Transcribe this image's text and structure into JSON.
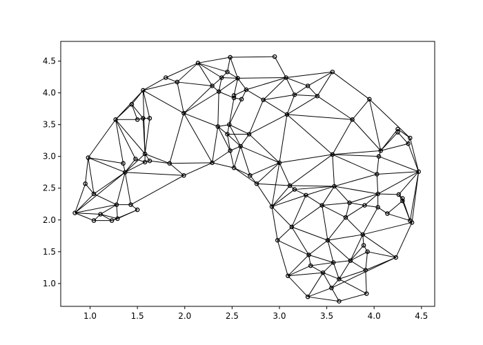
{
  "chart_data": {
    "type": "triangulation",
    "title": "",
    "xlabel": "",
    "ylabel": "",
    "xlim": [
      0.69,
      4.64
    ],
    "ylim": [
      0.64,
      4.81
    ],
    "x_ticks": [
      1.0,
      1.5,
      2.0,
      2.5,
      3.0,
      3.5,
      4.0,
      4.5
    ],
    "x_tick_labels": [
      "1.0",
      "1.5",
      "2.0",
      "2.5",
      "3.0",
      "3.5",
      "4.0",
      "4.5"
    ],
    "y_ticks": [
      1.0,
      1.5,
      2.0,
      2.5,
      3.0,
      3.5,
      4.0,
      4.5
    ],
    "y_tick_labels": [
      "1.0",
      "1.5",
      "2.0",
      "2.5",
      "3.0",
      "3.5",
      "4.0",
      "4.5"
    ],
    "grid": false,
    "line_color": "#000000",
    "marker": "open-circle",
    "points": [
      [
        0.84,
        2.11
      ],
      [
        1.04,
        1.99
      ],
      [
        1.23,
        1.99
      ],
      [
        1.29,
        2.02
      ],
      [
        1.5,
        2.16
      ],
      [
        1.43,
        2.24
      ],
      [
        1.28,
        2.24
      ],
      [
        1.11,
        2.09
      ],
      [
        1.04,
        2.41
      ],
      [
        0.95,
        2.57
      ],
      [
        1.37,
        2.75
      ],
      [
        1.35,
        2.89
      ],
      [
        0.98,
        2.98
      ],
      [
        1.27,
        3.58
      ],
      [
        1.48,
        2.96
      ],
      [
        1.58,
        2.91
      ],
      [
        1.58,
        3.04
      ],
      [
        1.63,
        2.93
      ],
      [
        1.84,
        2.89
      ],
      [
        1.99,
        2.7
      ],
      [
        1.44,
        3.82
      ],
      [
        1.56,
        4.04
      ],
      [
        1.8,
        4.24
      ],
      [
        1.92,
        4.17
      ],
      [
        1.99,
        3.68
      ],
      [
        1.5,
        3.58
      ],
      [
        1.56,
        3.6
      ],
      [
        1.63,
        3.6
      ],
      [
        2.14,
        4.47
      ],
      [
        2.29,
        4.11
      ],
      [
        2.36,
        4.02
      ],
      [
        2.39,
        4.24
      ],
      [
        2.45,
        4.33
      ],
      [
        2.48,
        4.56
      ],
      [
        2.56,
        4.23
      ],
      [
        2.52,
        3.96
      ],
      [
        2.52,
        3.92
      ],
      [
        2.6,
        3.9
      ],
      [
        2.65,
        4.05
      ],
      [
        2.83,
        3.89
      ],
      [
        2.95,
        4.57
      ],
      [
        3.07,
        4.24
      ],
      [
        3.16,
        3.97
      ],
      [
        3.3,
        4.11
      ],
      [
        3.4,
        3.95
      ],
      [
        3.56,
        4.33
      ],
      [
        3.95,
        3.9
      ],
      [
        3.77,
        3.58
      ],
      [
        3.08,
        3.66
      ],
      [
        2.47,
        3.5
      ],
      [
        2.35,
        3.47
      ],
      [
        2.45,
        3.35
      ],
      [
        2.68,
        3.35
      ],
      [
        2.59,
        3.16
      ],
      [
        2.48,
        3.09
      ],
      [
        2.29,
        2.9
      ],
      [
        2.52,
        2.82
      ],
      [
        2.69,
        2.7
      ],
      [
        2.76,
        2.57
      ],
      [
        3.0,
        2.9
      ],
      [
        2.92,
        2.21
      ],
      [
        3.11,
        2.54
      ],
      [
        3.16,
        2.48
      ],
      [
        3.28,
        2.39
      ],
      [
        3.58,
        2.53
      ],
      [
        3.56,
        3.03
      ],
      [
        4.03,
        2.72
      ],
      [
        4.05,
        3.0
      ],
      [
        4.07,
        3.09
      ],
      [
        4.25,
        3.38
      ],
      [
        4.25,
        3.43
      ],
      [
        4.36,
        3.2
      ],
      [
        4.38,
        3.29
      ],
      [
        4.47,
        2.76
      ],
      [
        4.04,
        2.41
      ],
      [
        4.26,
        2.4
      ],
      [
        4.3,
        2.3
      ],
      [
        4.3,
        2.34
      ],
      [
        3.74,
        2.27
      ],
      [
        3.9,
        2.23
      ],
      [
        3.45,
        2.23
      ],
      [
        4.04,
        2.2
      ],
      [
        4.14,
        2.1
      ],
      [
        4.38,
        1.99
      ],
      [
        4.4,
        1.96
      ],
      [
        3.7,
        2.04
      ],
      [
        3.13,
        1.89
      ],
      [
        3.51,
        1.68
      ],
      [
        3.88,
        1.77
      ],
      [
        2.98,
        1.68
      ],
      [
        3.89,
        1.6
      ],
      [
        3.93,
        1.5
      ],
      [
        4.23,
        1.41
      ],
      [
        3.31,
        1.45
      ],
      [
        3.75,
        1.36
      ],
      [
        3.57,
        1.33
      ],
      [
        3.33,
        1.28
      ],
      [
        3.09,
        1.12
      ],
      [
        3.46,
        1.17
      ],
      [
        3.91,
        1.21
      ],
      [
        3.63,
        1.07
      ],
      [
        3.3,
        0.79
      ],
      [
        3.55,
        0.93
      ],
      [
        3.63,
        0.72
      ],
      [
        3.92,
        0.84
      ]
    ],
    "edges": [
      [
        0,
        1
      ],
      [
        0,
        7
      ],
      [
        0,
        8
      ],
      [
        0,
        9
      ],
      [
        0,
        10
      ],
      [
        0,
        6
      ],
      [
        1,
        2
      ],
      [
        1,
        7
      ],
      [
        2,
        3
      ],
      [
        2,
        4
      ],
      [
        2,
        7
      ],
      [
        3,
        4
      ],
      [
        3,
        6
      ],
      [
        3,
        7
      ],
      [
        4,
        5
      ],
      [
        5,
        6
      ],
      [
        5,
        10
      ],
      [
        5,
        19
      ],
      [
        6,
        7
      ],
      [
        6,
        8
      ],
      [
        6,
        10
      ],
      [
        8,
        9
      ],
      [
        8,
        10
      ],
      [
        8,
        12
      ],
      [
        9,
        12
      ],
      [
        10,
        11
      ],
      [
        10,
        12
      ],
      [
        10,
        14
      ],
      [
        10,
        15
      ],
      [
        10,
        16
      ],
      [
        10,
        19
      ],
      [
        11,
        12
      ],
      [
        11,
        13
      ],
      [
        12,
        13
      ],
      [
        13,
        14
      ],
      [
        13,
        16
      ],
      [
        13,
        20
      ],
      [
        13,
        25
      ],
      [
        14,
        15
      ],
      [
        15,
        16
      ],
      [
        15,
        17
      ],
      [
        16,
        17
      ],
      [
        16,
        18
      ],
      [
        16,
        21
      ],
      [
        16,
        26
      ],
      [
        16,
        27
      ],
      [
        17,
        18
      ],
      [
        18,
        19
      ],
      [
        18,
        24
      ],
      [
        18,
        55
      ],
      [
        19,
        55
      ],
      [
        20,
        21
      ],
      [
        20,
        25
      ],
      [
        20,
        26
      ],
      [
        21,
        22
      ],
      [
        21,
        23
      ],
      [
        21,
        24
      ],
      [
        21,
        27
      ],
      [
        13,
        21
      ],
      [
        22,
        23
      ],
      [
        22,
        28
      ],
      [
        23,
        24
      ],
      [
        23,
        28
      ],
      [
        23,
        29
      ],
      [
        24,
        29
      ],
      [
        24,
        30
      ],
      [
        24,
        50
      ],
      [
        24,
        55
      ],
      [
        25,
        26
      ],
      [
        26,
        27
      ],
      [
        28,
        29
      ],
      [
        28,
        31
      ],
      [
        28,
        32
      ],
      [
        28,
        33
      ],
      [
        29,
        30
      ],
      [
        29,
        31
      ],
      [
        30,
        31
      ],
      [
        30,
        50
      ],
      [
        30,
        34
      ],
      [
        30,
        36
      ],
      [
        31,
        32
      ],
      [
        31,
        34
      ],
      [
        32,
        33
      ],
      [
        32,
        34
      ],
      [
        33,
        34
      ],
      [
        33,
        40
      ],
      [
        34,
        35
      ],
      [
        34,
        38
      ],
      [
        34,
        41
      ],
      [
        35,
        36
      ],
      [
        35,
        38
      ],
      [
        36,
        37
      ],
      [
        36,
        49
      ],
      [
        37,
        38
      ],
      [
        38,
        39
      ],
      [
        38,
        41
      ],
      [
        39,
        41
      ],
      [
        39,
        42
      ],
      [
        39,
        48
      ],
      [
        39,
        52
      ],
      [
        37,
        49
      ],
      [
        40,
        41
      ],
      [
        41,
        42
      ],
      [
        41,
        43
      ],
      [
        41,
        45
      ],
      [
        42,
        43
      ],
      [
        42,
        44
      ],
      [
        42,
        48
      ],
      [
        43,
        44
      ],
      [
        43,
        45
      ],
      [
        44,
        45
      ],
      [
        44,
        47
      ],
      [
        44,
        48
      ],
      [
        45,
        46
      ],
      [
        46,
        47
      ],
      [
        46,
        68
      ],
      [
        46,
        72
      ],
      [
        47,
        48
      ],
      [
        47,
        65
      ],
      [
        47,
        68
      ],
      [
        48,
        52
      ],
      [
        48,
        59
      ],
      [
        48,
        65
      ],
      [
        49,
        50
      ],
      [
        49,
        51
      ],
      [
        49,
        52
      ],
      [
        49,
        53
      ],
      [
        50,
        51
      ],
      [
        50,
        54
      ],
      [
        50,
        55
      ],
      [
        51,
        52
      ],
      [
        51,
        53
      ],
      [
        51,
        54
      ],
      [
        52,
        53
      ],
      [
        52,
        59
      ],
      [
        53,
        54
      ],
      [
        53,
        56
      ],
      [
        53,
        57
      ],
      [
        53,
        59
      ],
      [
        54,
        55
      ],
      [
        54,
        56
      ],
      [
        55,
        56
      ],
      [
        56,
        57
      ],
      [
        56,
        58
      ],
      [
        57,
        58
      ],
      [
        57,
        59
      ],
      [
        58,
        59
      ],
      [
        58,
        60
      ],
      [
        58,
        61
      ],
      [
        59,
        60
      ],
      [
        59,
        61
      ],
      [
        59,
        65
      ],
      [
        60,
        61
      ],
      [
        60,
        62
      ],
      [
        60,
        63
      ],
      [
        60,
        86
      ],
      [
        60,
        89
      ],
      [
        61,
        62
      ],
      [
        61,
        64
      ],
      [
        61,
        65
      ],
      [
        62,
        63
      ],
      [
        62,
        64
      ],
      [
        63,
        64
      ],
      [
        63,
        80
      ],
      [
        63,
        86
      ],
      [
        64,
        65
      ],
      [
        64,
        66
      ],
      [
        64,
        74
      ],
      [
        64,
        78
      ],
      [
        64,
        80
      ],
      [
        65,
        66
      ],
      [
        65,
        67
      ],
      [
        65,
        68
      ],
      [
        66,
        67
      ],
      [
        66,
        73
      ],
      [
        66,
        74
      ],
      [
        67,
        68
      ],
      [
        67,
        73
      ],
      [
        68,
        69
      ],
      [
        68,
        70
      ],
      [
        68,
        71
      ],
      [
        69,
        70
      ],
      [
        69,
        71
      ],
      [
        70,
        72
      ],
      [
        71,
        72
      ],
      [
        71,
        73
      ],
      [
        72,
        73
      ],
      [
        73,
        74
      ],
      [
        73,
        75
      ],
      [
        73,
        84
      ],
      [
        73,
        83
      ],
      [
        74,
        75
      ],
      [
        74,
        78
      ],
      [
        74,
        79
      ],
      [
        74,
        81
      ],
      [
        75,
        77
      ],
      [
        75,
        76
      ],
      [
        76,
        77
      ],
      [
        76,
        83
      ],
      [
        76,
        82
      ],
      [
        77,
        83
      ],
      [
        78,
        79
      ],
      [
        78,
        80
      ],
      [
        78,
        85
      ],
      [
        79,
        81
      ],
      [
        79,
        85
      ],
      [
        81,
        82
      ],
      [
        81,
        88
      ],
      [
        82,
        83
      ],
      [
        83,
        84
      ],
      [
        84,
        88
      ],
      [
        84,
        92
      ],
      [
        80,
        85
      ],
      [
        80,
        86
      ],
      [
        80,
        87
      ],
      [
        85,
        87
      ],
      [
        85,
        88
      ],
      [
        86,
        87
      ],
      [
        86,
        89
      ],
      [
        86,
        93
      ],
      [
        87,
        88
      ],
      [
        87,
        93
      ],
      [
        87,
        95
      ],
      [
        87,
        94
      ],
      [
        88,
        90
      ],
      [
        88,
        94
      ],
      [
        88,
        92
      ],
      [
        89,
        93
      ],
      [
        89,
        97
      ],
      [
        90,
        91
      ],
      [
        90,
        94
      ],
      [
        91,
        92
      ],
      [
        91,
        94
      ],
      [
        91,
        99
      ],
      [
        92,
        99
      ],
      [
        92,
        102
      ],
      [
        93,
        95
      ],
      [
        93,
        96
      ],
      [
        93,
        97
      ],
      [
        94,
        95
      ],
      [
        94,
        99
      ],
      [
        94,
        100
      ],
      [
        95,
        96
      ],
      [
        95,
        98
      ],
      [
        95,
        100
      ],
      [
        96,
        97
      ],
      [
        96,
        98
      ],
      [
        97,
        98
      ],
      [
        97,
        101
      ],
      [
        98,
        100
      ],
      [
        98,
        101
      ],
      [
        98,
        102
      ],
      [
        99,
        100
      ],
      [
        99,
        104
      ],
      [
        100,
        102
      ],
      [
        100,
        104
      ],
      [
        101,
        102
      ],
      [
        101,
        103
      ],
      [
        102,
        103
      ],
      [
        103,
        104
      ]
    ]
  }
}
